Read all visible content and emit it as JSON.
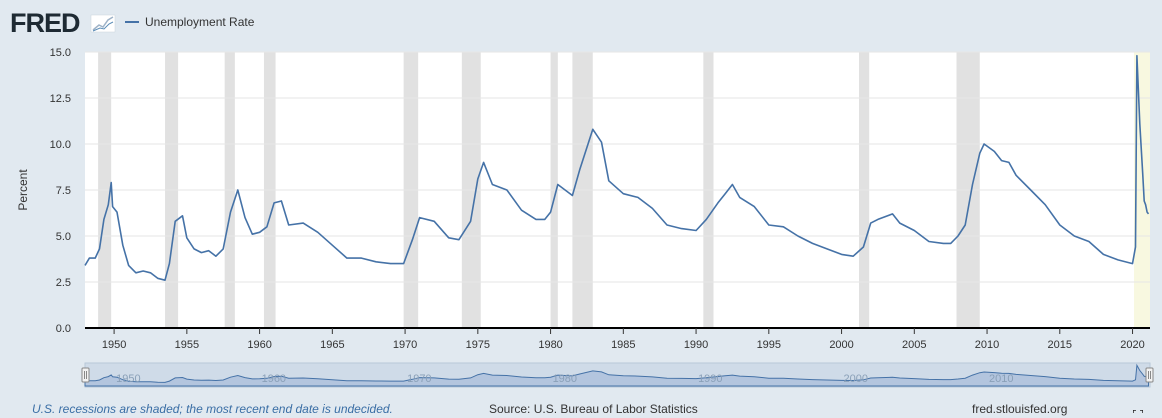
{
  "brand": {
    "logo_text": "FRED"
  },
  "legend": {
    "label": "Unemployment Rate",
    "color": "#4572a7"
  },
  "footer": {
    "recession_note": "U.S. recessions are shaded; the most recent end date is undecided.",
    "source": "Source: U.S. Bureau of Labor Statistics",
    "site": "fred.stlouisfed.org"
  },
  "colors": {
    "background": "#e1e9f0",
    "plot_background": "#ffffff",
    "recession_shade": "#e1e1e1",
    "current_recession_shade": "#f8f8e0",
    "navigator_fill": "#b3c5de",
    "navigator_line": "#4572a7"
  },
  "navigator": {
    "labels": [
      "1950",
      "1960",
      "1970",
      "1980",
      "1990",
      "2000",
      "2010"
    ]
  },
  "chart_data": {
    "type": "line",
    "title": "",
    "xlabel": "",
    "ylabel": "Percent",
    "x_unit": "year",
    "xlim": [
      1948.0,
      2021.2
    ],
    "ylim": [
      0,
      15
    ],
    "yticks": [
      0.0,
      2.5,
      5.0,
      7.5,
      10.0,
      12.5,
      15.0
    ],
    "ytick_labels": [
      "0.0",
      "2.5",
      "5.0",
      "7.5",
      "10.0",
      "12.5",
      "15.0"
    ],
    "xticks": [
      1950,
      1955,
      1960,
      1965,
      1970,
      1975,
      1980,
      1985,
      1990,
      1995,
      2000,
      2005,
      2010,
      2015,
      2020
    ],
    "grid": true,
    "legend_position": "top-left",
    "recessions": [
      [
        1948.9,
        1949.8
      ],
      [
        1953.5,
        1954.4
      ],
      [
        1957.6,
        1958.3
      ],
      [
        1960.3,
        1961.1
      ],
      [
        1969.9,
        1970.9
      ],
      [
        1973.9,
        1975.2
      ],
      [
        1980.0,
        1980.5
      ],
      [
        1981.5,
        1982.9
      ],
      [
        1990.5,
        1991.2
      ],
      [
        2001.2,
        2001.9
      ],
      [
        2007.9,
        2009.5
      ]
    ],
    "current_recession_start": 2020.1,
    "series": [
      {
        "name": "Unemployment Rate",
        "x": [
          1948.0,
          1948.3,
          1948.7,
          1949.0,
          1949.3,
          1949.6,
          1949.8,
          1949.9,
          1950.2,
          1950.6,
          1951.0,
          1951.5,
          1952.0,
          1952.5,
          1953.0,
          1953.5,
          1953.8,
          1954.2,
          1954.7,
          1955.0,
          1955.5,
          1956.0,
          1956.5,
          1957.0,
          1957.5,
          1958.0,
          1958.5,
          1959.0,
          1959.5,
          1960.0,
          1960.5,
          1961.0,
          1961.5,
          1962.0,
          1963.0,
          1964.0,
          1965.0,
          1966.0,
          1967.0,
          1968.0,
          1969.0,
          1969.9,
          1970.5,
          1971.0,
          1972.0,
          1973.0,
          1973.7,
          1974.5,
          1975.0,
          1975.4,
          1976.0,
          1977.0,
          1978.0,
          1979.0,
          1979.6,
          1980.0,
          1980.5,
          1981.0,
          1981.5,
          1982.0,
          1982.9,
          1983.5,
          1984.0,
          1985.0,
          1986.0,
          1987.0,
          1988.0,
          1989.0,
          1990.0,
          1990.7,
          1991.5,
          1992.0,
          1992.5,
          1993.0,
          1994.0,
          1995.0,
          1996.0,
          1997.0,
          1998.0,
          1999.0,
          2000.0,
          2000.8,
          2001.5,
          2002.0,
          2002.5,
          2003.5,
          2004.0,
          2005.0,
          2006.0,
          2007.0,
          2007.5,
          2008.0,
          2008.5,
          2009.0,
          2009.5,
          2009.8,
          2010.5,
          2011.0,
          2011.5,
          2012.0,
          2013.0,
          2014.0,
          2015.0,
          2016.0,
          2017.0,
          2018.0,
          2019.0,
          2020.0,
          2020.2,
          2020.3,
          2020.5,
          2020.7,
          2020.8,
          2020.9,
          2021.0,
          2021.1
        ],
        "y": [
          3.4,
          3.8,
          3.8,
          4.3,
          5.9,
          6.7,
          7.9,
          6.6,
          6.3,
          4.5,
          3.4,
          3.0,
          3.1,
          3.0,
          2.7,
          2.6,
          3.5,
          5.8,
          6.1,
          4.9,
          4.3,
          4.1,
          4.2,
          3.9,
          4.3,
          6.3,
          7.5,
          6.0,
          5.1,
          5.2,
          5.5,
          6.8,
          6.9,
          5.6,
          5.7,
          5.2,
          4.5,
          3.8,
          3.8,
          3.6,
          3.5,
          3.5,
          4.8,
          6.0,
          5.8,
          4.9,
          4.8,
          5.8,
          8.1,
          9.0,
          7.8,
          7.5,
          6.4,
          5.9,
          5.9,
          6.3,
          7.8,
          7.5,
          7.2,
          8.6,
          10.8,
          10.1,
          8.0,
          7.3,
          7.1,
          6.5,
          5.6,
          5.4,
          5.3,
          5.9,
          6.8,
          7.3,
          7.8,
          7.1,
          6.6,
          5.6,
          5.5,
          5.0,
          4.6,
          4.3,
          4.0,
          3.9,
          4.4,
          5.7,
          5.9,
          6.2,
          5.7,
          5.3,
          4.7,
          4.6,
          4.6,
          5.0,
          5.6,
          7.8,
          9.5,
          10.0,
          9.6,
          9.1,
          9.0,
          8.3,
          7.5,
          6.7,
          5.6,
          5.0,
          4.7,
          4.0,
          3.7,
          3.5,
          4.4,
          14.8,
          11.1,
          8.4,
          6.9,
          6.7,
          6.3,
          6.2
        ]
      }
    ]
  }
}
